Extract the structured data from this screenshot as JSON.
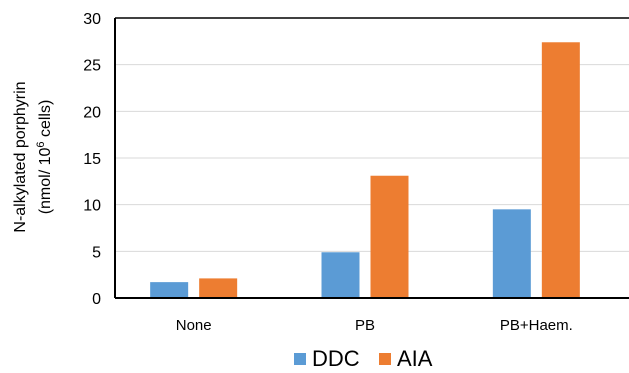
{
  "chart_data": {
    "type": "bar",
    "categories": [
      "None",
      "PB",
      "PB+Haem."
    ],
    "series": [
      {
        "name": "DDC",
        "values": [
          1.7,
          4.9,
          9.5
        ],
        "color": "#5B9BD5"
      },
      {
        "name": "AIA",
        "values": [
          2.1,
          13.1,
          27.4
        ],
        "color": "#ED7D31"
      }
    ],
    "ylabel_line1": "N-alkylated porphyrin",
    "ylabel_line2_pre": "(nmol/ 10",
    "ylabel_line2_sup": "6",
    "ylabel_line2_post": " cells)",
    "ylim": [
      0,
      30
    ],
    "yticks": [
      "0",
      "5",
      "10",
      "15",
      "20",
      "25",
      "30"
    ],
    "grid": true,
    "legend_position": "bottom"
  }
}
